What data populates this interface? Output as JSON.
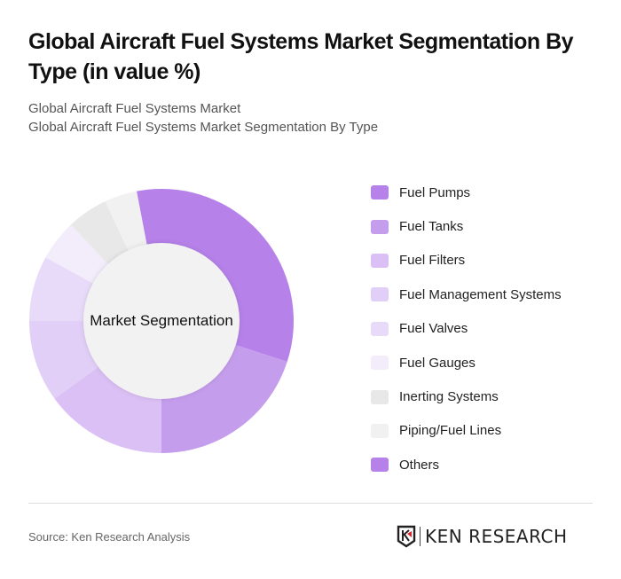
{
  "header": {
    "title": "Global Aircraft Fuel Systems Market Segmentation By Type (in value %)",
    "subtitle_line1": "Global Aircraft Fuel Systems Market",
    "subtitle_line2": "Global Aircraft Fuel Systems Market Segmentation By Type"
  },
  "chart": {
    "center_label": "Market Segmentation"
  },
  "legend": [
    {
      "label": "Fuel Pumps",
      "color": "#b682ea"
    },
    {
      "label": "Fuel Tanks",
      "color": "#c59ded"
    },
    {
      "label": "Fuel Filters",
      "color": "#dbc0f5"
    },
    {
      "label": "Fuel Management Systems",
      "color": "#e2cff7"
    },
    {
      "label": "Fuel Valves",
      "color": "#e8dbf9"
    },
    {
      "label": "Fuel Gauges",
      "color": "#f2ecfb"
    },
    {
      "label": "Inerting Systems",
      "color": "#e8e8e8"
    },
    {
      "label": "Piping/Fuel Lines",
      "color": "#f1f1f1"
    },
    {
      "label": "Others",
      "color": "#b682ea"
    }
  ],
  "footer": {
    "source": "Source: Ken Research Analysis",
    "logo_text": "KEN RESEARCH"
  },
  "chart_data": {
    "type": "pie",
    "subtype": "donut",
    "title": "Global Aircraft Fuel Systems Market Segmentation By Type (in value %)",
    "center_label": "Market Segmentation",
    "categories": [
      "Fuel Pumps",
      "Fuel Tanks",
      "Fuel Filters",
      "Fuel Management Systems",
      "Fuel Valves",
      "Fuel Gauges",
      "Inerting Systems",
      "Piping/Fuel Lines",
      "Others"
    ],
    "values": [
      30,
      20,
      15,
      10,
      8,
      5,
      5,
      4,
      3
    ],
    "colors": [
      "#b682ea",
      "#c59ded",
      "#dbc0f5",
      "#e2cff7",
      "#e8dbf9",
      "#f2ecfb",
      "#e8e8e8",
      "#f1f1f1",
      "#b682ea"
    ],
    "unit": "%",
    "legend_position": "right",
    "start_angle_deg": 0,
    "direction": "clockwise"
  }
}
